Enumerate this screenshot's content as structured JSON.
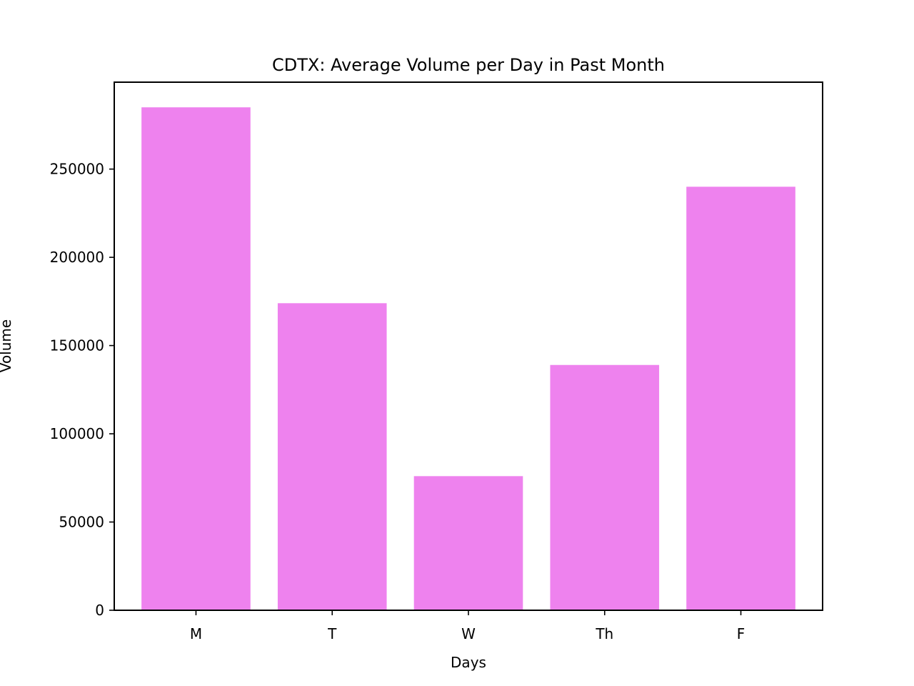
{
  "chart_data": {
    "type": "bar",
    "title": "CDTX: Average Volume per Day in Past Month",
    "xlabel": "Days",
    "ylabel": "Volume",
    "categories": [
      "M",
      "T",
      "W",
      "Th",
      "F"
    ],
    "values": [
      285000,
      174000,
      76000,
      139000,
      240000
    ],
    "ylim": [
      0,
      299250
    ],
    "yticks": [
      0,
      50000,
      100000,
      150000,
      200000,
      250000
    ],
    "ytick_labels": [
      "0",
      "50000",
      "100000",
      "150000",
      "200000",
      "250000"
    ],
    "bar_color": "#EE82EE",
    "grid": false,
    "legend": "none"
  }
}
